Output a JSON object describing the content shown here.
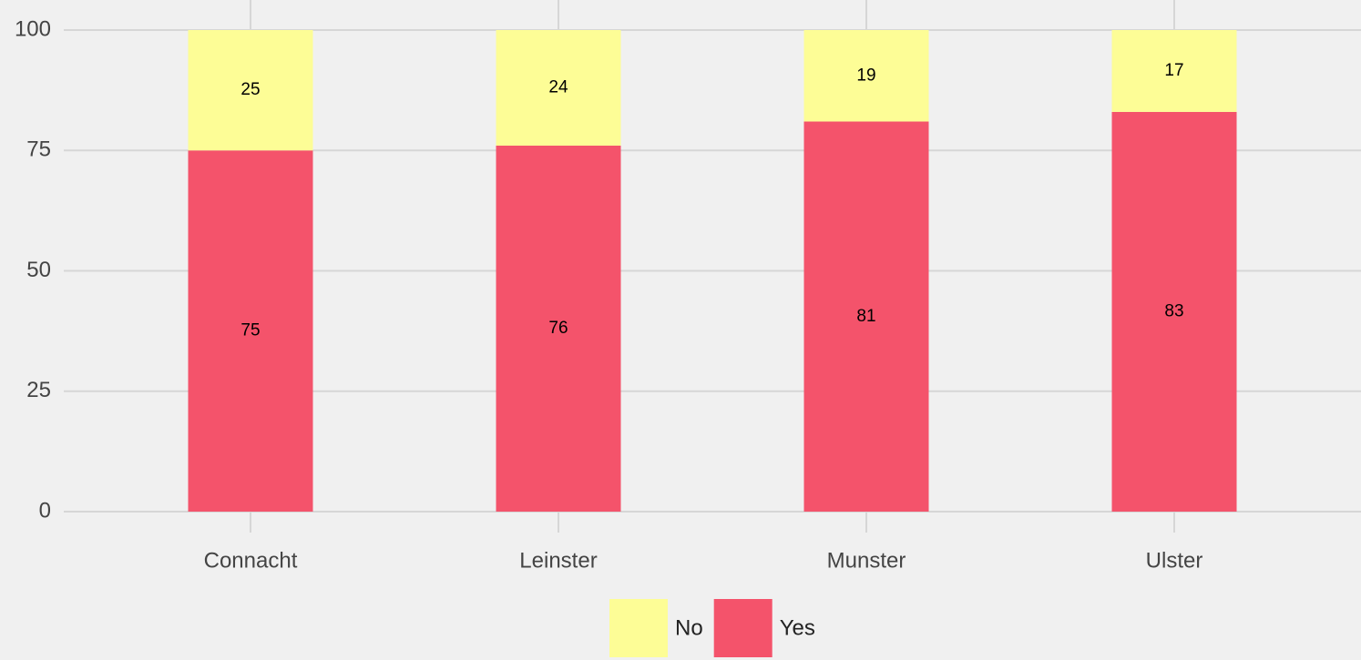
{
  "chart_data": {
    "type": "stacked_bar",
    "categories": [
      "Connacht",
      "Leinster",
      "Munster",
      "Ulster"
    ],
    "series": [
      {
        "name": "Yes",
        "color": "#f4536b",
        "values": [
          75,
          76,
          81,
          83
        ]
      },
      {
        "name": "No",
        "color": "#fdfd96",
        "values": [
          25,
          24,
          19,
          17
        ]
      }
    ],
    "ylim": [
      0,
      100
    ],
    "yticks": [
      0,
      25,
      50,
      75,
      100
    ],
    "grid": true,
    "legend": "bottom"
  }
}
